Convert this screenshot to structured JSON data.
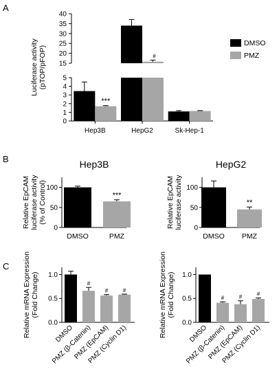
{
  "figure": {
    "panel_labels": [
      "A",
      "B",
      "C"
    ]
  },
  "colors": {
    "dmso": "#000000",
    "pmz": "#a6a6a6",
    "axis": "#000000"
  },
  "chart_data": [
    {
      "id": "A",
      "type": "bar",
      "title": "",
      "ylabel": [
        "Luciferase activity",
        "(pTOP/pFOP)"
      ],
      "y_axis_break": true,
      "segments": [
        {
          "ylim": [
            0,
            5
          ],
          "ticks": [
            "0",
            "1",
            "2",
            "3",
            "4",
            "5"
          ]
        },
        {
          "ylim": [
            15,
            40
          ],
          "ticks": [
            "15",
            "20",
            "25",
            "30",
            "35",
            "40"
          ]
        }
      ],
      "categories": [
        "Hep3B",
        "HepG2",
        "Sk-Hep-1"
      ],
      "legend": {
        "position": "top-right",
        "entries": [
          "DMSO",
          "PMZ"
        ]
      },
      "series": [
        {
          "name": "DMSO",
          "color": "#000000",
          "values": [
            3.45,
            34.0,
            1.1
          ],
          "errors": [
            1.05,
            3.1,
            0.1
          ],
          "annotations": [
            "",
            "",
            ""
          ]
        },
        {
          "name": "PMZ",
          "color": "#a6a6a6",
          "values": [
            1.7,
            15.8,
            1.15
          ],
          "errors": [
            0.07,
            0.8,
            0.05
          ],
          "annotations": [
            "***",
            "#",
            ""
          ]
        }
      ]
    },
    {
      "id": "B-left",
      "type": "bar",
      "title": "Hep3B",
      "ylabel": [
        "Relative EpCAM",
        "luciferase activity",
        "(% of Control)"
      ],
      "ylim": [
        0,
        125
      ],
      "yticks": [
        "0",
        "50",
        "100"
      ],
      "categories": [
        "DMSO",
        "PMZ"
      ],
      "values": [
        100,
        65
      ],
      "errors": [
        3,
        4
      ],
      "colors": [
        "#000000",
        "#a6a6a6"
      ],
      "annotations": [
        "",
        "***"
      ]
    },
    {
      "id": "B-right",
      "type": "bar",
      "title": "HepG2",
      "ylabel": [
        "Relative EpCAM",
        "luciferase activity"
      ],
      "ylim": [
        0,
        125
      ],
      "yticks": [
        "0",
        "50",
        "100"
      ],
      "categories": [
        "DMSO",
        "PMZ"
      ],
      "values": [
        100,
        45
      ],
      "errors": [
        16,
        6
      ],
      "colors": [
        "#000000",
        "#a6a6a6"
      ],
      "annotations": [
        "",
        "**"
      ]
    },
    {
      "id": "C-left",
      "type": "bar",
      "title": "",
      "ylabel": [
        "Relative mRNA Expression",
        "(Fold Change)"
      ],
      "ylim": [
        0,
        1.15
      ],
      "yticks": [
        "0.0",
        "0.5",
        "1.0"
      ],
      "categories": [
        "DMSO",
        "PMZ (β-Catenin)",
        "PMZ (EpCAM)",
        "PMZ (Cyclin D1)"
      ],
      "values": [
        1.0,
        0.66,
        0.56,
        0.58
      ],
      "errors": [
        0.07,
        0.07,
        0.02,
        0.01
      ],
      "colors": [
        "#000000",
        "#a6a6a6",
        "#a6a6a6",
        "#a6a6a6"
      ],
      "annotations": [
        "",
        "#",
        "#",
        "#"
      ]
    },
    {
      "id": "C-right",
      "type": "bar",
      "title": "",
      "ylabel": [
        "Relative mRNA Expression",
        "(Fold Change)"
      ],
      "ylim": [
        0,
        1.15
      ],
      "yticks": [
        "0.0",
        "0.5",
        "1.0"
      ],
      "categories": [
        "DMSO",
        "PMZ (β-Catenin)",
        "PMZ (EpCAM)",
        "PMZ (Cyclin D1)"
      ],
      "values": [
        1.0,
        0.41,
        0.38,
        0.49
      ],
      "errors": [
        0.0,
        0.02,
        0.07,
        0.02
      ],
      "colors": [
        "#000000",
        "#a6a6a6",
        "#a6a6a6",
        "#a6a6a6"
      ],
      "annotations": [
        "",
        "#",
        "#",
        "#"
      ]
    }
  ]
}
